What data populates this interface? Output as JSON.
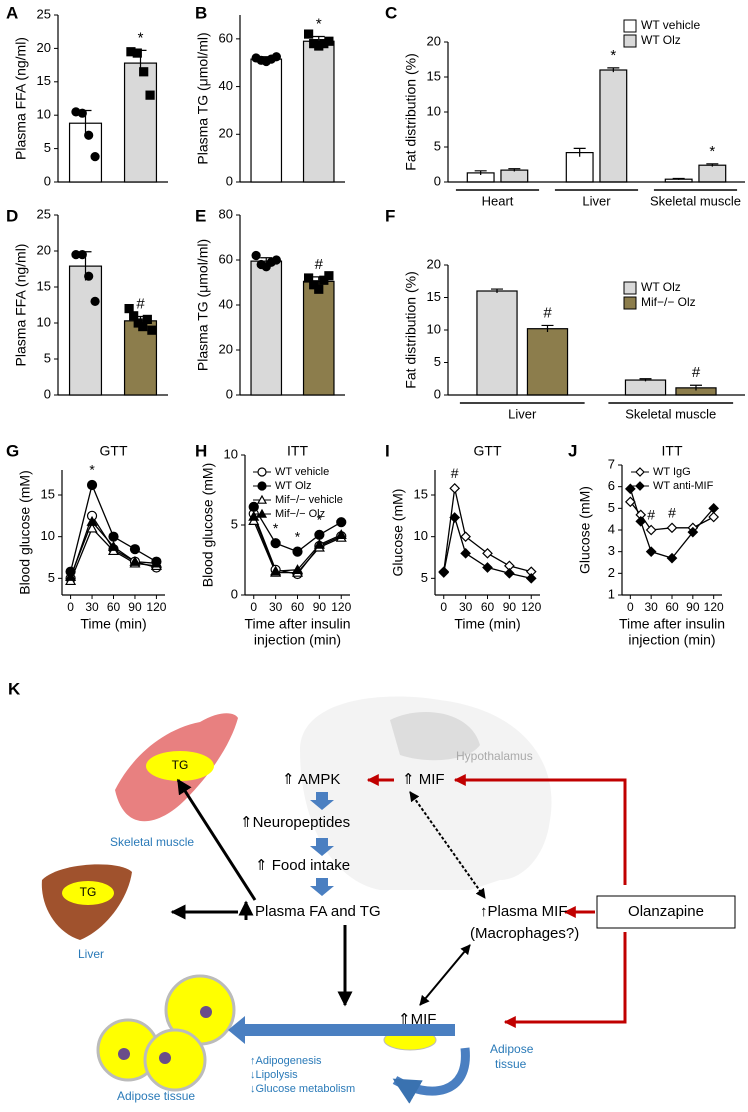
{
  "chart_data": [
    {
      "type": "bar",
      "panel": "A",
      "ylabel": "Plasma FFA (ng/ml)",
      "ylim": [
        0,
        25
      ],
      "yticks": [
        0,
        5,
        10,
        15,
        20,
        25
      ],
      "values": [
        8.8,
        17.8
      ],
      "errors": [
        1.9,
        1.9
      ],
      "colors": [
        "#ffffff",
        "#d9d9d9"
      ],
      "points": [
        [
          10.5,
          10.3,
          7.0,
          3.8
        ],
        [
          19.5,
          19.3,
          16.5,
          13.0
        ]
      ],
      "markers": [
        "circle",
        "square"
      ],
      "sig": [
        null,
        "*"
      ]
    },
    {
      "type": "bar",
      "panel": "B",
      "ylabel": "Plasma TG (μmol/ml)",
      "ylim": [
        0,
        70
      ],
      "yticks": [
        0,
        20,
        40,
        60
      ],
      "values": [
        51.5,
        59
      ],
      "errors": [
        1,
        2
      ],
      "colors": [
        "#ffffff",
        "#d9d9d9"
      ],
      "points": [
        [
          52,
          51,
          50.5,
          51.5,
          52.5
        ],
        [
          62,
          58,
          57,
          58,
          59
        ]
      ],
      "markers": [
        "circle",
        "square"
      ],
      "sig": [
        null,
        "*"
      ]
    },
    {
      "type": "grouped-bar",
      "panel": "C",
      "ylabel": "Fat distribution (%)",
      "ylim": [
        0,
        20
      ],
      "yticks": [
        0,
        5,
        10,
        15,
        20
      ],
      "groups": [
        "Heart",
        "Liver",
        "Skeletal muscle"
      ],
      "series": [
        {
          "name": "WT vehicle",
          "color": "#ffffff",
          "values": [
            1.3,
            4.2,
            0.4
          ],
          "errors": [
            0.3,
            0.6,
            0.1
          ],
          "sig": [
            null,
            null,
            null
          ]
        },
        {
          "name": "WT Olz",
          "color": "#d9d9d9",
          "values": [
            1.7,
            16,
            2.4
          ],
          "errors": [
            0.2,
            0.3,
            0.2
          ],
          "sig": [
            null,
            "*",
            "*"
          ]
        }
      ]
    },
    {
      "type": "bar",
      "panel": "D",
      "ylabel": "Plasma FFA (ng/ml)",
      "ylim": [
        0,
        25
      ],
      "yticks": [
        0,
        5,
        10,
        15,
        20,
        25
      ],
      "values": [
        17.9,
        10.3
      ],
      "errors": [
        2,
        0.6
      ],
      "colors": [
        "#d9d9d9",
        "#8c7d4c"
      ],
      "points": [
        [
          19.5,
          19.5,
          16.5,
          13.0
        ],
        [
          12,
          11,
          10,
          9.5,
          10.5,
          9
        ]
      ],
      "markers": [
        "circle",
        "square"
      ],
      "sig": [
        null,
        "#"
      ]
    },
    {
      "type": "bar",
      "panel": "E",
      "ylabel": "Plasma TG (μmol/ml)",
      "ylim": [
        0,
        80
      ],
      "yticks": [
        0,
        20,
        40,
        60,
        80
      ],
      "values": [
        59.5,
        50.5
      ],
      "errors": [
        1.5,
        2
      ],
      "colors": [
        "#d9d9d9",
        "#8c7d4c"
      ],
      "points": [
        [
          62,
          58,
          57,
          59,
          60
        ],
        [
          52,
          49,
          47,
          51,
          53
        ]
      ],
      "markers": [
        "circle",
        "square"
      ],
      "sig": [
        null,
        "#"
      ]
    },
    {
      "type": "grouped-bar",
      "panel": "F",
      "ylabel": "Fat distribution (%)",
      "ylim": [
        0,
        20
      ],
      "yticks": [
        0,
        5,
        10,
        15,
        20
      ],
      "groups": [
        "Liver",
        "Skeletal muscle"
      ],
      "series": [
        {
          "name": "WT Olz",
          "color": "#d9d9d9",
          "values": [
            16,
            2.3
          ],
          "errors": [
            0.3,
            0.2
          ],
          "sig": [
            null,
            null
          ]
        },
        {
          "name": "Mif−/− Olz",
          "color": "#8c7d4c",
          "values": [
            10.2,
            1.1
          ],
          "errors": [
            0.5,
            0.4
          ],
          "sig": [
            "#",
            "#"
          ]
        }
      ]
    },
    {
      "type": "line",
      "panel": "G",
      "title": "GTT",
      "ylabel": "Blood glucose (mM)",
      "xlabel": [
        "Time (min)"
      ],
      "x": [
        0,
        30,
        60,
        90,
        120
      ],
      "xlim": [
        -12,
        132
      ],
      "xticks": [
        0,
        30,
        60,
        90,
        120
      ],
      "ylim": [
        3,
        18
      ],
      "yticks": [
        5,
        10,
        15
      ],
      "series": [
        {
          "marker": "circle",
          "fill": "open",
          "color": "#000000",
          "values": [
            5,
            12.5,
            8.5,
            7,
            6.3
          ]
        },
        {
          "marker": "circle",
          "fill": "filled",
          "color": "#000000",
          "values": [
            5.8,
            16.2,
            10,
            8.5,
            7
          ]
        },
        {
          "marker": "triangle",
          "fill": "open",
          "color": "#000000",
          "values": [
            4.7,
            11,
            8.3,
            6.8,
            6.5
          ]
        },
        {
          "marker": "triangle",
          "fill": "filled",
          "color": "#000000",
          "values": [
            5.2,
            11.8,
            8.8,
            7,
            6.8
          ]
        }
      ],
      "annotations": [
        {
          "text": "*",
          "x": 30
        }
      ]
    },
    {
      "type": "line",
      "panel": "H",
      "title": "ITT",
      "ylabel": "Blood glucose (mM)",
      "xlabel": [
        "Time after insulin",
        "injection (min)"
      ],
      "x": [
        0,
        30,
        60,
        90,
        120
      ],
      "xlim": [
        -12,
        132
      ],
      "xticks": [
        0,
        30,
        60,
        90,
        120
      ],
      "ylim": [
        0,
        10
      ],
      "yticks": [
        0,
        5,
        10
      ],
      "series": [
        {
          "name": "WT vehicle",
          "marker": "circle",
          "fill": "open",
          "color": "#000000",
          "values": [
            5.8,
            1.8,
            1.5,
            3.5,
            4.2
          ]
        },
        {
          "name": "WT Olz",
          "marker": "circle",
          "fill": "filled",
          "color": "#000000",
          "values": [
            6.3,
            3.7,
            3.1,
            4.3,
            5.2
          ]
        },
        {
          "name": "Mif−/− vehicle",
          "marker": "triangle",
          "fill": "open",
          "color": "#000000",
          "values": [
            5.3,
            1.6,
            1.6,
            3.4,
            4.1
          ]
        },
        {
          "name": "Mif−/− Olz",
          "marker": "triangle",
          "fill": "filled",
          "color": "#000000",
          "values": [
            5.6,
            1.7,
            1.8,
            3.6,
            4.3
          ]
        }
      ],
      "annotations": [
        {
          "text": "*",
          "x": 30
        },
        {
          "text": "*",
          "x": 60
        },
        {
          "text": "*",
          "x": 90
        }
      ]
    },
    {
      "type": "line",
      "panel": "I",
      "title": "GTT",
      "ylabel": "Glucose (mM)",
      "xlabel": [
        "Time (min)"
      ],
      "x": [
        0,
        15,
        30,
        60,
        90,
        120
      ],
      "xlim": [
        -12,
        132
      ],
      "xticks": [
        0,
        30,
        60,
        90,
        120
      ],
      "ylim": [
        3,
        18
      ],
      "yticks": [
        5,
        10,
        15
      ],
      "series": [
        {
          "marker": "diamond",
          "fill": "open",
          "color": "#000000",
          "values": [
            5.8,
            15.8,
            10,
            8,
            6.5,
            5.8
          ]
        },
        {
          "marker": "diamond",
          "fill": "filled",
          "color": "#000000",
          "values": [
            5.7,
            12.3,
            8,
            6.3,
            5.6,
            5.0
          ]
        }
      ],
      "annotations": [
        {
          "text": "#",
          "x": 15
        }
      ]
    },
    {
      "type": "line",
      "panel": "J",
      "title": "ITT",
      "ylabel": "Glucose (mM)",
      "xlabel": [
        "Time after insulin",
        "injection (min)"
      ],
      "x": [
        0,
        15,
        30,
        60,
        90,
        120
      ],
      "xlim": [
        -12,
        132
      ],
      "xticks": [
        0,
        30,
        60,
        90,
        120
      ],
      "ylim": [
        1,
        7
      ],
      "yticks": [
        1,
        2,
        3,
        4,
        5,
        6,
        7
      ],
      "series": [
        {
          "name": "WT IgG",
          "marker": "diamond",
          "fill": "open",
          "color": "#000000",
          "values": [
            5.3,
            4.7,
            4.0,
            4.1,
            4.1,
            4.6
          ]
        },
        {
          "name": "WT anti-MIF",
          "marker": "diamond",
          "fill": "filled",
          "color": "#000000",
          "values": [
            5.9,
            4.4,
            3.0,
            2.7,
            3.9,
            5.0
          ]
        }
      ],
      "annotations": [
        {
          "text": "#",
          "x": 30
        },
        {
          "text": "#",
          "x": 60
        }
      ]
    }
  ],
  "diagram": {
    "panel": "K",
    "hypothalamus": "Hypothalamus",
    "ampk": "⇑ AMPK",
    "mif_brain": "⇑ MIF",
    "neuropeptides": "⇑Neuropeptides",
    "food_intake": "⇑ Food intake",
    "plasma_fa": "Plasma FA and TG",
    "plasma_mif": "↑Plasma MIF",
    "macrophages": "(Macrophages?)",
    "olanzapine": "Olanzapine",
    "mif_adipose": "⇑MIF",
    "adipose_small": [
      "Adipose",
      "tissue"
    ],
    "tg_muscle": "TG",
    "tg_liver": "TG",
    "skeletal_muscle": "Skeletal muscle",
    "liver": "Liver",
    "adipose_tissue": "Adipose tissue",
    "effects": [
      "↑Adipogenesis",
      "↓Lipolysis",
      "↓Glucose metabolism"
    ]
  }
}
